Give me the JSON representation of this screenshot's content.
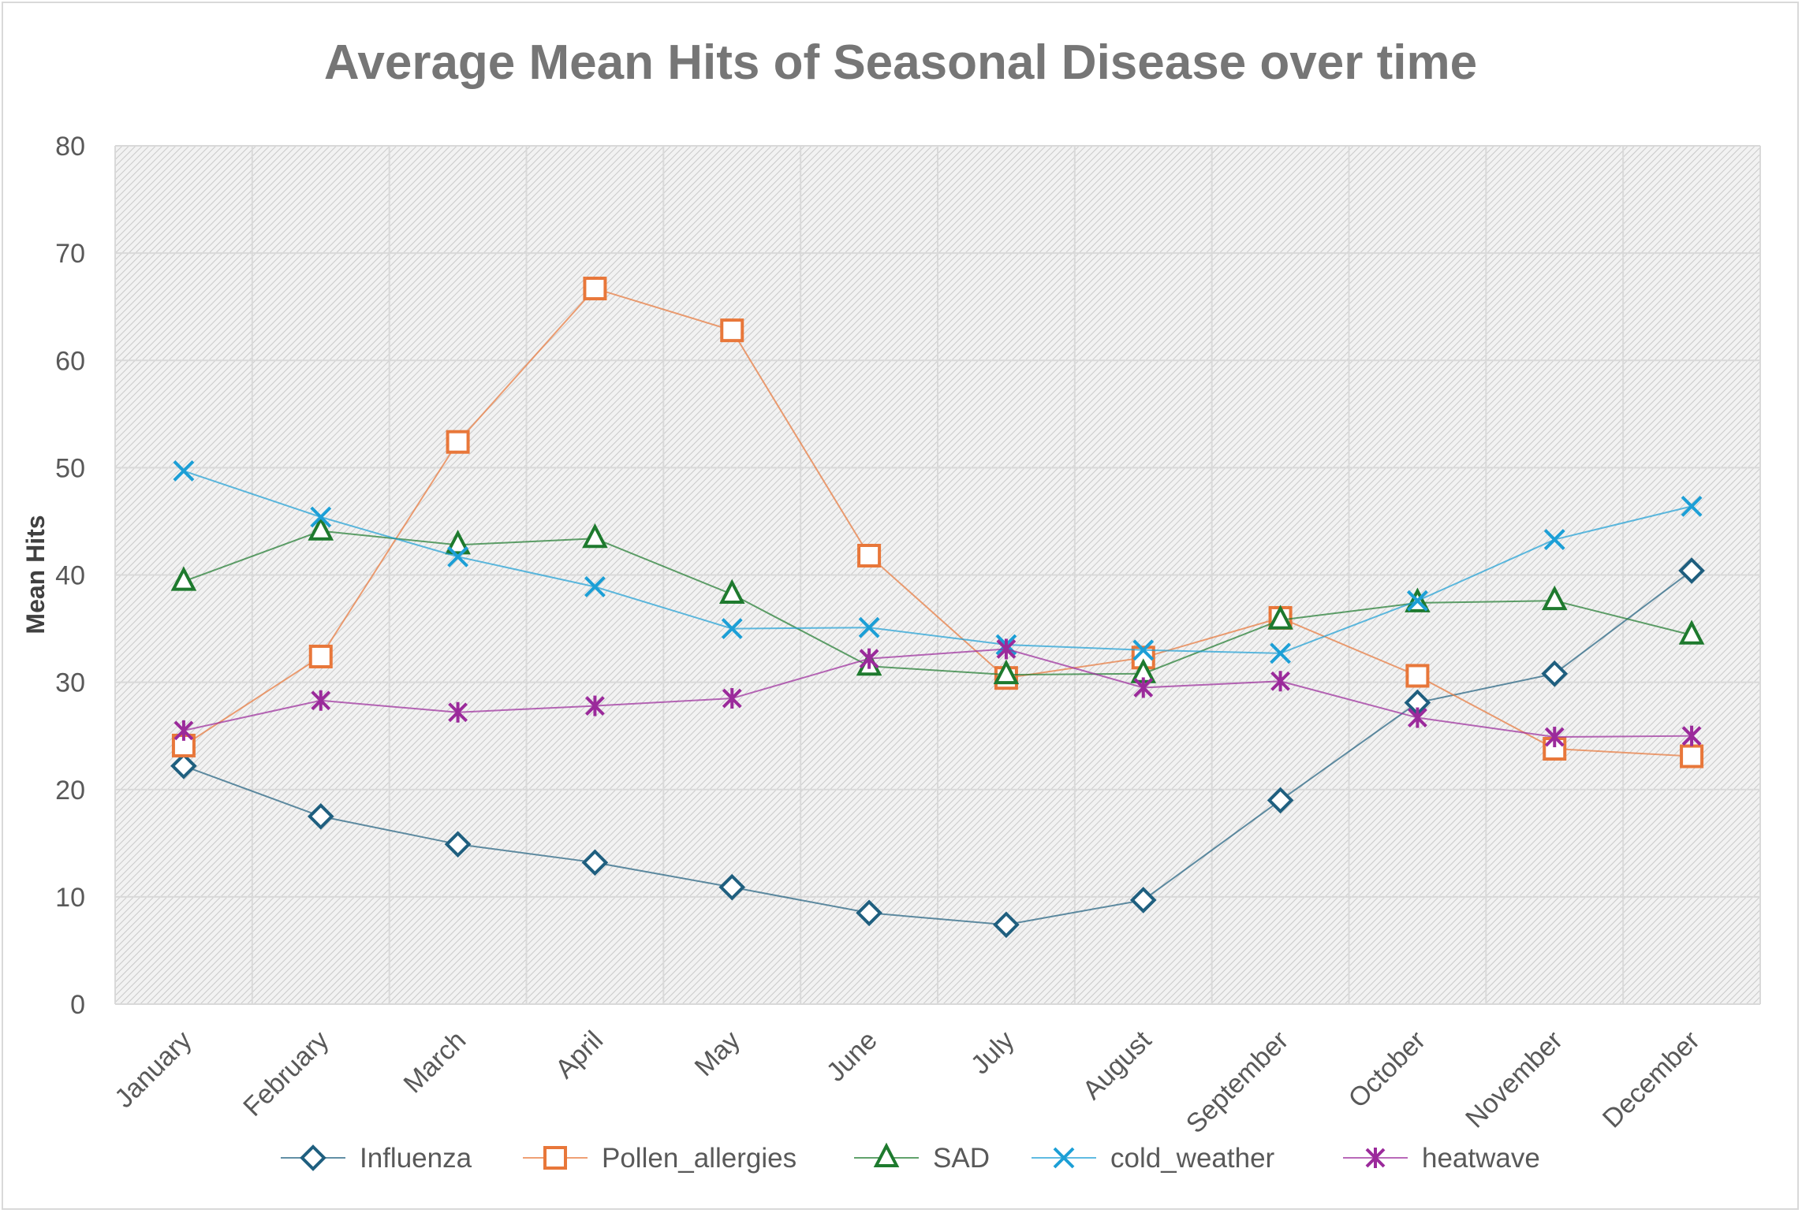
{
  "chart_data": {
    "type": "line",
    "title": "Average Mean Hits of Seasonal Disease over time",
    "xlabel": "",
    "ylabel": "Mean Hits",
    "ylim": [
      0,
      80
    ],
    "yticks": [
      0,
      10,
      20,
      30,
      40,
      50,
      60,
      70,
      80
    ],
    "grid": true,
    "legend_position": "bottom",
    "categories": [
      "January",
      "February",
      "March",
      "April",
      "May",
      "June",
      "July",
      "August",
      "September",
      "October",
      "November",
      "December"
    ],
    "series": [
      {
        "name": "Influenza",
        "color": "#1f5f7f",
        "marker": "diamond",
        "values": [
          22.2,
          17.5,
          14.9,
          13.2,
          10.9,
          8.5,
          7.4,
          9.7,
          19.0,
          28.1,
          30.8,
          40.4
        ]
      },
      {
        "name": "Pollen_allergies",
        "color": "#e8773a",
        "marker": "square",
        "values": [
          24.1,
          32.4,
          52.4,
          66.7,
          62.8,
          41.8,
          30.4,
          32.3,
          36.0,
          30.6,
          23.8,
          23.1
        ]
      },
      {
        "name": "SAD",
        "color": "#1e7a2e",
        "marker": "triangle",
        "values": [
          39.4,
          44.1,
          42.8,
          43.4,
          38.2,
          31.5,
          30.7,
          30.8,
          35.8,
          37.4,
          37.6,
          34.4
        ]
      },
      {
        "name": "cold_weather",
        "color": "#1c9fd6",
        "marker": "x",
        "values": [
          49.7,
          45.4,
          41.7,
          38.9,
          35.0,
          35.1,
          33.5,
          33.0,
          32.7,
          37.6,
          43.3,
          46.4
        ]
      },
      {
        "name": "heatwave",
        "color": "#9b2a9b",
        "marker": "star",
        "values": [
          25.5,
          28.3,
          27.2,
          27.8,
          28.5,
          32.2,
          33.1,
          29.5,
          30.1,
          26.7,
          24.9,
          25.0
        ]
      }
    ]
  }
}
